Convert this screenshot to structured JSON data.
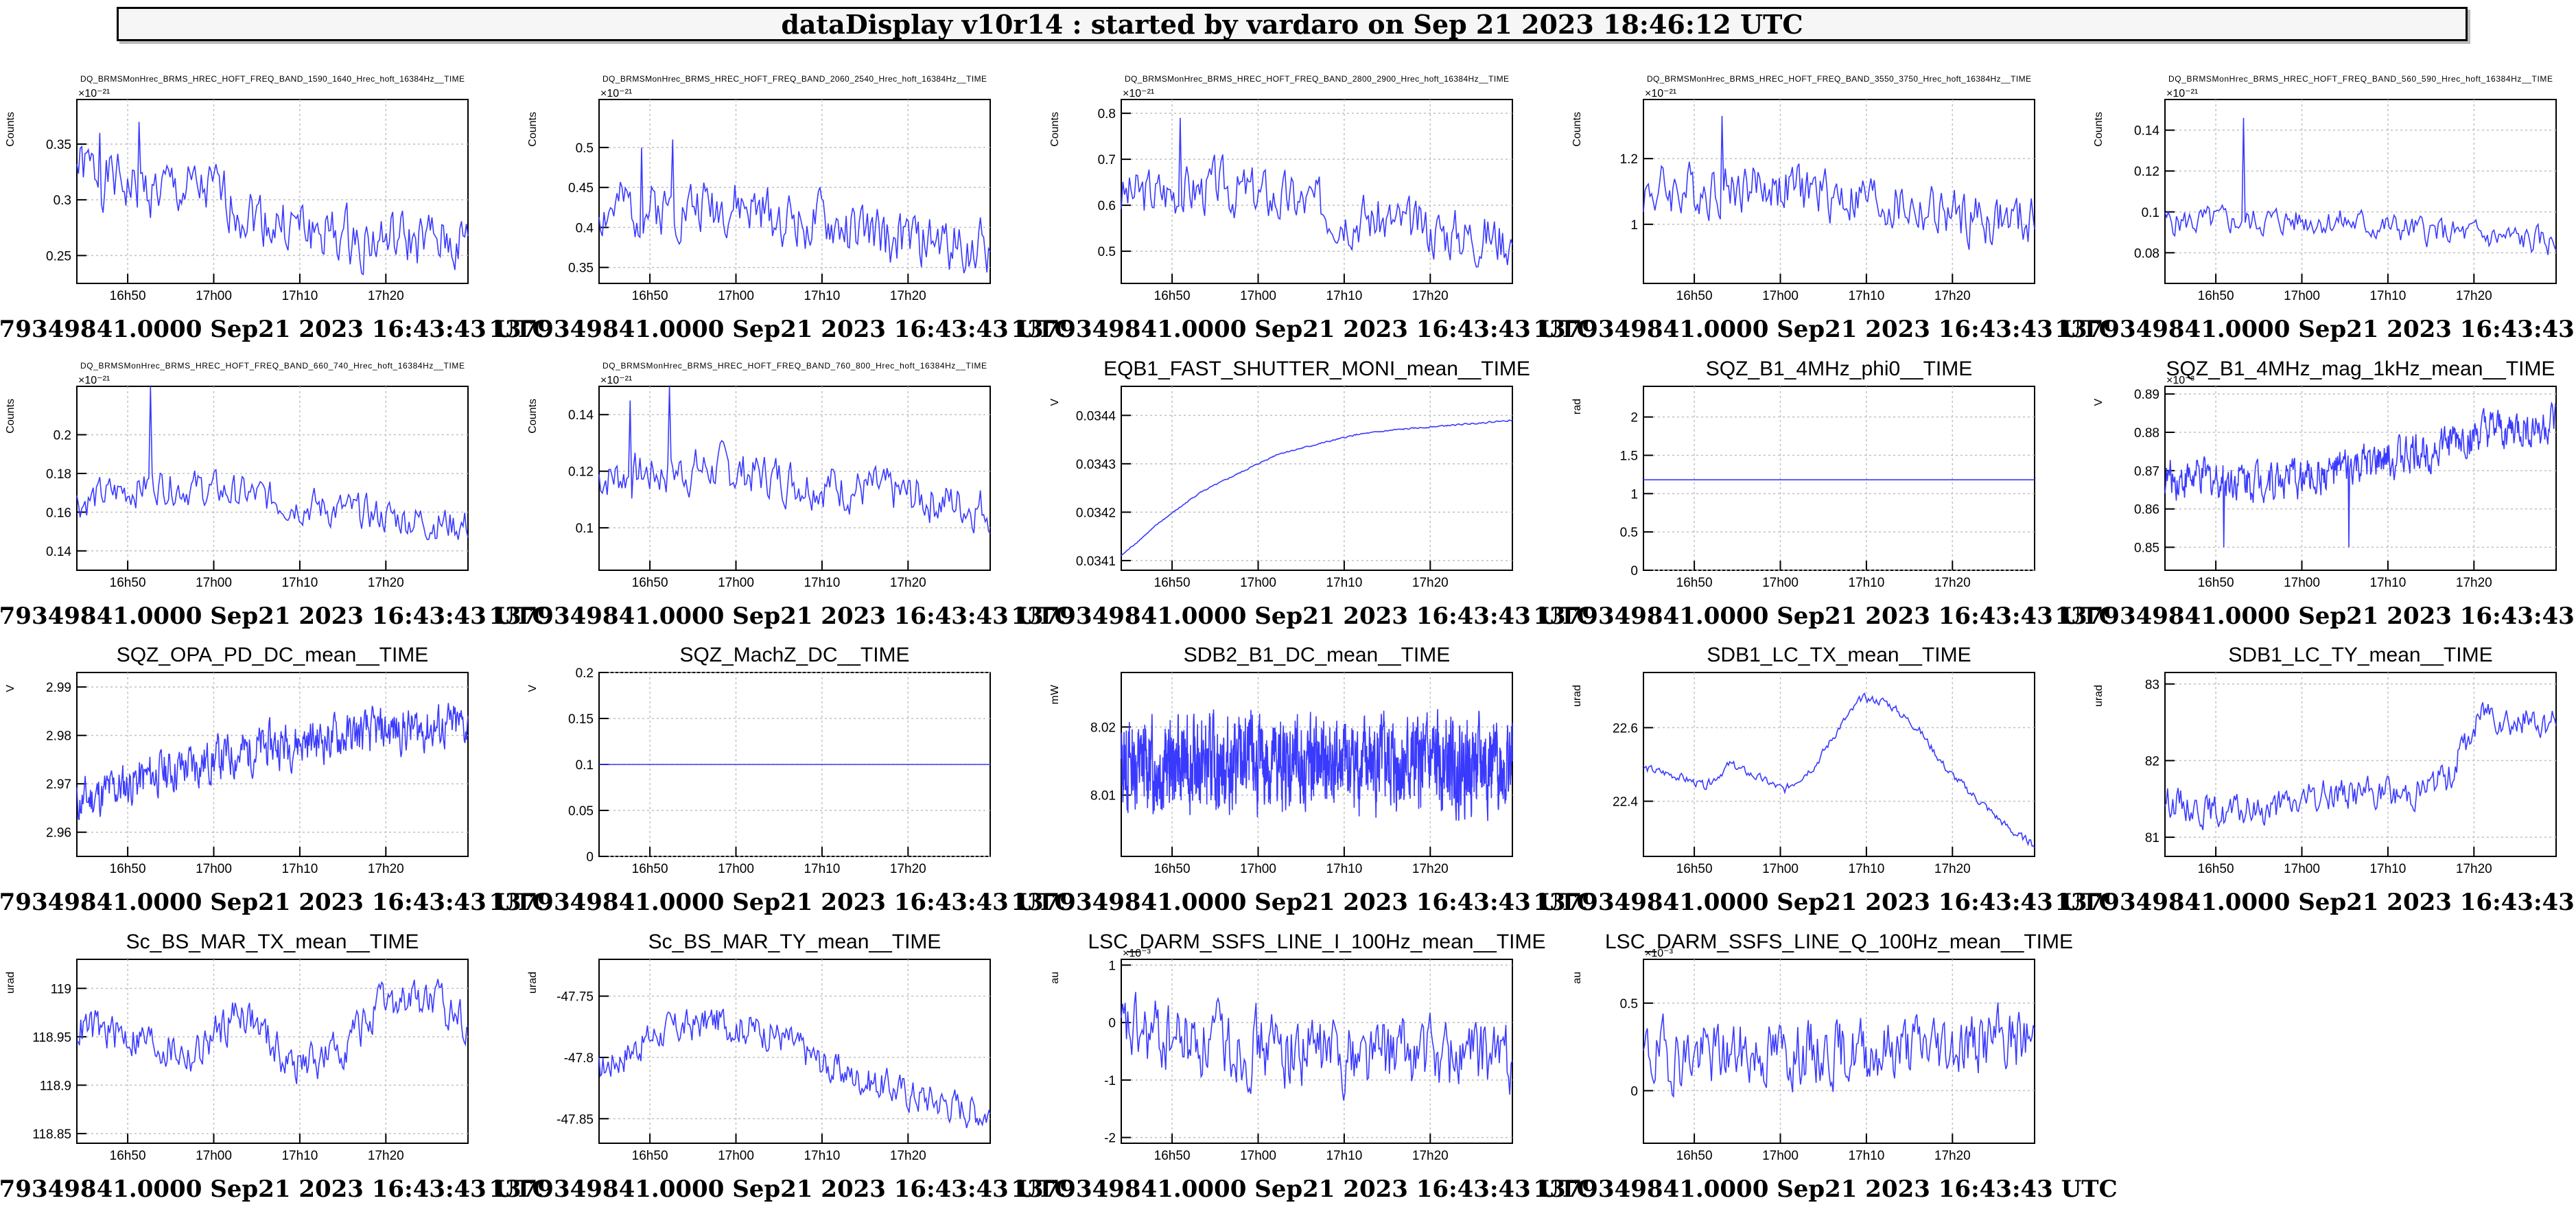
{
  "header": {
    "title": "dataDisplay v10r14 : started by vardaro on Sep 21 2023 18:46:12 UTC"
  },
  "footer_label": "1379349841.0000 Sep21 2023 16:43:43 UTC",
  "colors": {
    "trace": "#3a3aff",
    "grid": "#c0c0c0",
    "frame": "#000000"
  },
  "chart_data": [
    {
      "type": "line",
      "title": "DQ_BRMSMonHrec_BRMS_HREC_HOFT_FREQ_BAND_1590_1640_Hrec_hoft_16384Hz__TIME",
      "title_size": "small",
      "ylabel": "Counts",
      "exponent": "×10⁻²¹",
      "ylim": [
        0.225,
        0.39
      ],
      "yticks": [
        {
          "v": 0.25,
          "label": "0.25"
        },
        {
          "v": 0.3,
          "label": "0.3"
        },
        {
          "v": 0.35,
          "label": "0.35"
        }
      ],
      "xticks": [
        "16h50",
        "17h00",
        "17h10",
        "17h20"
      ],
      "trend": [
        [
          0,
          0.33
        ],
        [
          0.15,
          0.31
        ],
        [
          0.35,
          0.305
        ],
        [
          0.5,
          0.28
        ],
        [
          0.7,
          0.265
        ],
        [
          1,
          0.26
        ]
      ],
      "noise": 0.022,
      "points": 240,
      "spikes": [
        [
          0.16,
          0.37
        ],
        [
          0.06,
          0.36
        ]
      ],
      "seed": 1
    },
    {
      "type": "line",
      "title": "DQ_BRMSMonHrec_BRMS_HREC_HOFT_FREQ_BAND_2060_2540_Hrec_hoft_16384Hz__TIME",
      "title_size": "small",
      "ylabel": "Counts",
      "exponent": "×10⁻²¹",
      "ylim": [
        0.33,
        0.56
      ],
      "yticks": [
        {
          "v": 0.35,
          "label": "0.35"
        },
        {
          "v": 0.4,
          "label": "0.4"
        },
        {
          "v": 0.45,
          "label": "0.45"
        },
        {
          "v": 0.5,
          "label": "0.5"
        }
      ],
      "xticks": [
        "16h50",
        "17h00",
        "17h10",
        "17h20"
      ],
      "trend": [
        [
          0,
          0.42
        ],
        [
          0.3,
          0.43
        ],
        [
          0.5,
          0.41
        ],
        [
          0.75,
          0.385
        ],
        [
          1,
          0.375
        ]
      ],
      "noise": 0.03,
      "points": 240,
      "spikes": [
        [
          0.11,
          0.5
        ],
        [
          0.19,
          0.51
        ]
      ],
      "seed": 2
    },
    {
      "type": "line",
      "title": "DQ_BRMSMonHrec_BRMS_HREC_HOFT_FREQ_BAND_2800_2900_Hrec_hoft_16384Hz__TIME",
      "title_size": "small",
      "ylabel": "Counts",
      "exponent": "×10⁻²¹",
      "ylim": [
        0.43,
        0.83
      ],
      "yticks": [
        {
          "v": 0.5,
          "label": "0.5"
        },
        {
          "v": 0.6,
          "label": "0.6"
        },
        {
          "v": 0.7,
          "label": "0.7"
        },
        {
          "v": 0.8,
          "label": "0.8"
        }
      ],
      "xticks": [
        "16h50",
        "17h00",
        "17h10",
        "17h20"
      ],
      "trend": [
        [
          0,
          0.62
        ],
        [
          0.25,
          0.64
        ],
        [
          0.5,
          0.6
        ],
        [
          0.75,
          0.55
        ],
        [
          1,
          0.53
        ]
      ],
      "noise": 0.05,
      "points": 240,
      "spikes": [
        [
          0.15,
          0.79
        ]
      ],
      "seed": 3
    },
    {
      "type": "line",
      "title": "DQ_BRMSMonHrec_BRMS_HREC_HOFT_FREQ_BAND_3550_3750_Hrec_hoft_16384Hz__TIME",
      "title_size": "small",
      "ylabel": "Counts",
      "exponent": "×10⁻²¹",
      "ylim": [
        0.82,
        1.38
      ],
      "yticks": [
        {
          "v": 1.0,
          "label": "1"
        },
        {
          "v": 1.2,
          "label": "1.2"
        }
      ],
      "xticks": [
        "16h50",
        "17h00",
        "17h10",
        "17h20"
      ],
      "trend": [
        [
          0,
          1.1
        ],
        [
          0.3,
          1.12
        ],
        [
          0.55,
          1.08
        ],
        [
          0.8,
          1.02
        ],
        [
          1,
          1.0
        ]
      ],
      "noise": 0.07,
      "points": 240,
      "spikes": [
        [
          0.2,
          1.33
        ]
      ],
      "seed": 4
    },
    {
      "type": "line",
      "title": "DQ_BRMSMonHrec_BRMS_HREC_HOFT_FREQ_BAND_560_590_Hrec_hoft_16384Hz__TIME",
      "title_size": "small",
      "ylabel": "Counts",
      "exponent": "×10⁻²¹",
      "ylim": [
        0.065,
        0.155
      ],
      "yticks": [
        {
          "v": 0.08,
          "label": "0.08"
        },
        {
          "v": 0.1,
          "label": "0.1"
        },
        {
          "v": 0.12,
          "label": "0.12"
        },
        {
          "v": 0.14,
          "label": "0.14"
        }
      ],
      "xticks": [
        "16h50",
        "17h00",
        "17h10",
        "17h20"
      ],
      "trend": [
        [
          0,
          0.095
        ],
        [
          0.4,
          0.096
        ],
        [
          0.7,
          0.09
        ],
        [
          1,
          0.085
        ]
      ],
      "noise": 0.006,
      "points": 240,
      "spikes": [
        [
          0.2,
          0.146
        ]
      ],
      "seed": 5
    },
    {
      "type": "line",
      "title": "DQ_BRMSMonHrec_BRMS_HREC_HOFT_FREQ_BAND_660_740_Hrec_hoft_16384Hz__TIME",
      "title_size": "small",
      "ylabel": "Counts",
      "exponent": "×10⁻²¹",
      "ylim": [
        0.13,
        0.225
      ],
      "yticks": [
        {
          "v": 0.14,
          "label": "0.14"
        },
        {
          "v": 0.16,
          "label": "0.16"
        },
        {
          "v": 0.18,
          "label": "0.18"
        },
        {
          "v": 0.2,
          "label": "0.2"
        }
      ],
      "xticks": [
        "16h50",
        "17h00",
        "17h10",
        "17h20"
      ],
      "trend": [
        [
          0,
          0.165
        ],
        [
          0.2,
          0.175
        ],
        [
          0.4,
          0.17
        ],
        [
          0.7,
          0.16
        ],
        [
          1,
          0.153
        ]
      ],
      "noise": 0.008,
      "points": 240,
      "spikes": [
        [
          0.19,
          0.225
        ]
      ],
      "seed": 6
    },
    {
      "type": "line",
      "title": "DQ_BRMSMonHrec_BRMS_HREC_HOFT_FREQ_BAND_760_800_Hrec_hoft_16384Hz__TIME",
      "title_size": "small",
      "ylabel": "Counts",
      "exponent": "×10⁻²¹",
      "ylim": [
        0.085,
        0.15
      ],
      "yticks": [
        {
          "v": 0.1,
          "label": "0.1"
        },
        {
          "v": 0.12,
          "label": "0.12"
        },
        {
          "v": 0.14,
          "label": "0.14"
        }
      ],
      "xticks": [
        "16h50",
        "17h00",
        "17h10",
        "17h20"
      ],
      "trend": [
        [
          0,
          0.118
        ],
        [
          0.3,
          0.121
        ],
        [
          0.6,
          0.115
        ],
        [
          1,
          0.107
        ]
      ],
      "noise": 0.007,
      "points": 240,
      "spikes": [
        [
          0.18,
          0.15
        ],
        [
          0.08,
          0.145
        ]
      ],
      "seed": 7
    },
    {
      "type": "line",
      "title": "EQB1_FAST_SHUTTER_MONI_mean__TIME",
      "title_size": "large",
      "ylabel": "V",
      "exponent": "",
      "ylim": [
        0.03408,
        0.03446
      ],
      "yticks": [
        {
          "v": 0.0341,
          "label": "0.0341"
        },
        {
          "v": 0.0342,
          "label": "0.0342"
        },
        {
          "v": 0.0343,
          "label": "0.0343"
        },
        {
          "v": 0.0344,
          "label": "0.0344"
        }
      ],
      "xticks": [
        "16h50",
        "17h00",
        "17h10",
        "17h20"
      ],
      "trend": [
        [
          0,
          0.03411
        ],
        [
          0.1,
          0.03418
        ],
        [
          0.2,
          0.03424
        ],
        [
          0.3,
          0.03428
        ],
        [
          0.4,
          0.03432
        ],
        [
          0.5,
          0.03434
        ],
        [
          0.6,
          0.03436
        ],
        [
          0.7,
          0.03437
        ],
        [
          0.85,
          0.03438
        ],
        [
          1,
          0.03439
        ]
      ],
      "noise": 1.2e-06,
      "points": 400,
      "spikes": [],
      "seed": 8
    },
    {
      "type": "line",
      "title": "SQZ_B1_4MHz_phi0__TIME",
      "title_size": "large",
      "ylabel": "rad",
      "exponent": "",
      "ylim": [
        0,
        2.4
      ],
      "yticks": [
        {
          "v": 0,
          "label": "0"
        },
        {
          "v": 0.5,
          "label": "0.5"
        },
        {
          "v": 1,
          "label": "1"
        },
        {
          "v": 1.5,
          "label": "1.5"
        },
        {
          "v": 2,
          "label": "2"
        }
      ],
      "xticks": [
        "16h50",
        "17h00",
        "17h10",
        "17h20"
      ],
      "trend": [
        [
          0,
          1.18
        ],
        [
          1,
          1.18
        ]
      ],
      "noise": 0,
      "points": 20,
      "spikes": [],
      "seed": 9
    },
    {
      "type": "line",
      "title": "SQZ_B1_4MHz_mag_1kHz_mean__TIME",
      "title_size": "large",
      "ylabel": "V",
      "exponent": "×10⁻³",
      "ylim": [
        0.844,
        0.892
      ],
      "yticks": [
        {
          "v": 0.85,
          "label": "0.85"
        },
        {
          "v": 0.86,
          "label": "0.86"
        },
        {
          "v": 0.87,
          "label": "0.87"
        },
        {
          "v": 0.88,
          "label": "0.88"
        },
        {
          "v": 0.89,
          "label": "0.89"
        }
      ],
      "xticks": [
        "16h50",
        "17h00",
        "17h10",
        "17h20"
      ],
      "trend": [
        [
          0,
          0.868
        ],
        [
          0.35,
          0.868
        ],
        [
          0.55,
          0.872
        ],
        [
          0.75,
          0.878
        ],
        [
          1,
          0.882
        ]
      ],
      "noise": 0.0045,
      "points": 520,
      "spikes": [
        [
          0.15,
          0.85
        ],
        [
          0.47,
          0.85
        ]
      ],
      "seed": 10
    },
    {
      "type": "line",
      "title": "SQZ_OPA_PD_DC_mean__TIME",
      "title_size": "large",
      "ylabel": "V",
      "exponent": "",
      "ylim": [
        2.955,
        2.993
      ],
      "yticks": [
        {
          "v": 2.96,
          "label": "2.96"
        },
        {
          "v": 2.97,
          "label": "2.97"
        },
        {
          "v": 2.98,
          "label": "2.98"
        },
        {
          "v": 2.99,
          "label": "2.99"
        }
      ],
      "xticks": [
        "16h50",
        "17h00",
        "17h10",
        "17h20"
      ],
      "trend": [
        [
          0,
          2.966
        ],
        [
          0.2,
          2.972
        ],
        [
          0.5,
          2.978
        ],
        [
          0.8,
          2.981
        ],
        [
          1,
          2.982
        ]
      ],
      "noise": 0.004,
      "points": 520,
      "spikes": [],
      "seed": 11
    },
    {
      "type": "line",
      "title": "SQZ_MachZ_DC__TIME",
      "title_size": "large",
      "ylabel": "V",
      "exponent": "",
      "ylim": [
        0,
        0.2
      ],
      "yticks": [
        {
          "v": 0,
          "label": "0"
        },
        {
          "v": 0.05,
          "label": "0.05"
        },
        {
          "v": 0.1,
          "label": "0.1"
        },
        {
          "v": 0.15,
          "label": "0.15"
        },
        {
          "v": 0.2,
          "label": "0.2"
        }
      ],
      "xticks": [
        "16h50",
        "17h00",
        "17h10",
        "17h20"
      ],
      "trend": [
        [
          0,
          0.1
        ],
        [
          1,
          0.1
        ]
      ],
      "noise": 0,
      "points": 20,
      "spikes": [],
      "seed": 12
    },
    {
      "type": "line",
      "title": "SDB2_B1_DC_mean__TIME",
      "title_size": "large",
      "ylabel": "mW",
      "exponent": "",
      "ylim": [
        8.001,
        8.028
      ],
      "yticks": [
        {
          "v": 8.01,
          "label": "8.01"
        },
        {
          "v": 8.02,
          "label": "8.02"
        }
      ],
      "xticks": [
        "16h50",
        "17h00",
        "17h10",
        "17h20"
      ],
      "trend": [
        [
          0,
          8.0145
        ],
        [
          1,
          8.0145
        ]
      ],
      "noise": 0.0055,
      "points": 1400,
      "spikes": [],
      "seed": 13
    },
    {
      "type": "line",
      "title": "SDB1_LC_TX_mean__TIME",
      "title_size": "large",
      "ylabel": "urad",
      "exponent": "",
      "ylim": [
        22.25,
        22.75
      ],
      "yticks": [
        {
          "v": 22.4,
          "label": "22.4"
        },
        {
          "v": 22.6,
          "label": "22.6"
        }
      ],
      "xticks": [
        "16h50",
        "17h00",
        "17h10",
        "17h20"
      ],
      "trend": [
        [
          0,
          22.49
        ],
        [
          0.08,
          22.47
        ],
        [
          0.16,
          22.44
        ],
        [
          0.22,
          22.5
        ],
        [
          0.3,
          22.46
        ],
        [
          0.36,
          22.43
        ],
        [
          0.44,
          22.5
        ],
        [
          0.5,
          22.6
        ],
        [
          0.56,
          22.68
        ],
        [
          0.62,
          22.67
        ],
        [
          0.7,
          22.6
        ],
        [
          0.78,
          22.48
        ],
        [
          0.86,
          22.4
        ],
        [
          0.94,
          22.32
        ],
        [
          1,
          22.28
        ]
      ],
      "noise": 0.01,
      "points": 300,
      "spikes": [],
      "seed": 14
    },
    {
      "type": "line",
      "title": "SDB1_LC_TY_mean__TIME",
      "title_size": "large",
      "ylabel": "urad",
      "exponent": "",
      "ylim": [
        80.75,
        83.15
      ],
      "yticks": [
        {
          "v": 81,
          "label": "81"
        },
        {
          "v": 82,
          "label": "82"
        },
        {
          "v": 83,
          "label": "83"
        }
      ],
      "xticks": [
        "16h50",
        "17h00",
        "17h10",
        "17h20"
      ],
      "trend": [
        [
          0,
          81.5
        ],
        [
          0.15,
          81.3
        ],
        [
          0.3,
          81.4
        ],
        [
          0.45,
          81.6
        ],
        [
          0.6,
          81.55
        ],
        [
          0.72,
          81.75
        ],
        [
          0.82,
          82.7
        ],
        [
          0.9,
          82.5
        ],
        [
          1,
          82.5
        ]
      ],
      "noise": 0.18,
      "points": 300,
      "spikes": [],
      "seed": 15
    },
    {
      "type": "line",
      "title": "Sc_BS_MAR_TX_mean__TIME",
      "title_size": "large",
      "ylabel": "urad",
      "exponent": "",
      "ylim": [
        118.84,
        119.03
      ],
      "yticks": [
        {
          "v": 118.85,
          "label": "118.85"
        },
        {
          "v": 118.9,
          "label": "118.9"
        },
        {
          "v": 118.95,
          "label": "118.95"
        },
        {
          "v": 119,
          "label": "119"
        }
      ],
      "xticks": [
        "16h50",
        "17h00",
        "17h10",
        "17h20"
      ],
      "trend": [
        [
          0,
          118.96
        ],
        [
          0.15,
          118.95
        ],
        [
          0.3,
          118.93
        ],
        [
          0.42,
          118.98
        ],
        [
          0.55,
          118.92
        ],
        [
          0.65,
          118.93
        ],
        [
          0.78,
          118.98
        ],
        [
          0.88,
          118.99
        ],
        [
          1,
          118.97
        ]
      ],
      "noise": 0.018,
      "points": 300,
      "spikes": [],
      "seed": 16
    },
    {
      "type": "line",
      "title": "Sc_BS_MAR_TY_mean__TIME",
      "title_size": "large",
      "ylabel": "urad",
      "exponent": "",
      "ylim": [
        -47.87,
        -47.72
      ],
      "yticks": [
        {
          "v": -47.85,
          "label": "-47.85"
        },
        {
          "v": -47.8,
          "label": "-47.8"
        },
        {
          "v": -47.75,
          "label": "-47.75"
        }
      ],
      "xticks": [
        "16h50",
        "17h00",
        "17h10",
        "17h20"
      ],
      "trend": [
        [
          0,
          -47.81
        ],
        [
          0.15,
          -47.78
        ],
        [
          0.3,
          -47.77
        ],
        [
          0.45,
          -47.78
        ],
        [
          0.6,
          -47.81
        ],
        [
          0.8,
          -47.83
        ],
        [
          1,
          -47.845
        ]
      ],
      "noise": 0.012,
      "points": 300,
      "spikes": [],
      "seed": 17
    },
    {
      "type": "line",
      "title": "LSC_DARM_SSFS_LINE_I_100Hz_mean__TIME",
      "title_size": "large",
      "ylabel": "au",
      "exponent": "×10⁻³",
      "ylim": [
        -2.1,
        1.1
      ],
      "yticks": [
        {
          "v": -2,
          "label": "-2"
        },
        {
          "v": -1,
          "label": "-1"
        },
        {
          "v": 0,
          "label": "0"
        },
        {
          "v": 1,
          "label": "1"
        }
      ],
      "xticks": [
        "16h50",
        "17h00",
        "17h10",
        "17h20"
      ],
      "trend": [
        [
          0,
          -0.2
        ],
        [
          0.5,
          -0.5
        ],
        [
          1,
          -0.6
        ]
      ],
      "noise": 0.55,
      "points": 300,
      "spikes": [],
      "seed": 18
    },
    {
      "type": "line",
      "title": "LSC_DARM_SSFS_LINE_Q_100Hz_mean__TIME",
      "title_size": "large",
      "ylabel": "au",
      "exponent": "×10⁻³",
      "ylim": [
        -0.3,
        0.75
      ],
      "yticks": [
        {
          "v": 0,
          "label": "0"
        },
        {
          "v": 0.5,
          "label": "0.5"
        }
      ],
      "xticks": [
        "16h50",
        "17h00",
        "17h10",
        "17h20"
      ],
      "trend": [
        [
          0,
          0.2
        ],
        [
          0.5,
          0.22
        ],
        [
          1,
          0.3
        ]
      ],
      "noise": 0.16,
      "points": 300,
      "spikes": [],
      "seed": 19
    }
  ]
}
